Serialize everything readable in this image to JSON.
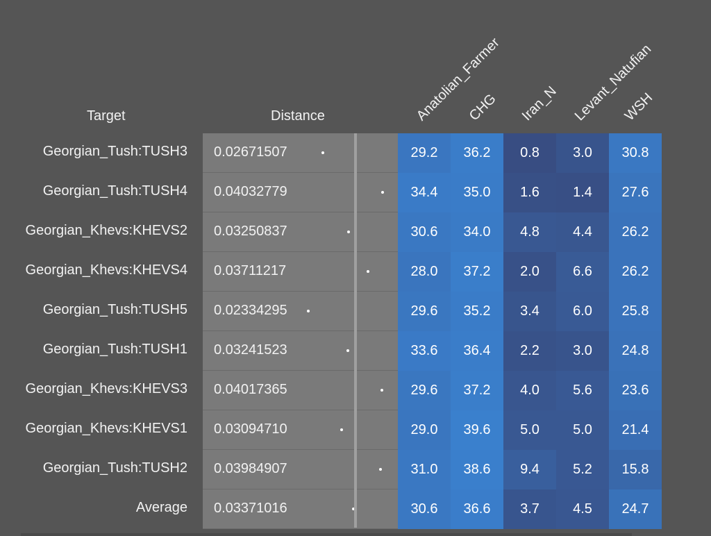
{
  "headers": {
    "target": "Target",
    "distance": "Distance",
    "columns": [
      "Anatolian_Farmer",
      "CHG",
      "Iran_N",
      "Levant_Natufian",
      "WSH"
    ]
  },
  "chart_data": {
    "type": "table",
    "columns": [
      "Target",
      "Distance",
      "Anatolian_Farmer",
      "CHG",
      "Iran_N",
      "Levant_Natufian",
      "WSH"
    ],
    "rows": [
      {
        "target": "Georgian_Tush:TUSH3",
        "distance": "0.02671507",
        "values": [
          "29.2",
          "36.2",
          "0.8",
          "3.0",
          "30.8"
        ]
      },
      {
        "target": "Georgian_Tush:TUSH4",
        "distance": "0.04032779",
        "values": [
          "34.4",
          "35.0",
          "1.6",
          "1.4",
          "27.6"
        ]
      },
      {
        "target": "Georgian_Khevs:KHEVS2",
        "distance": "0.03250837",
        "values": [
          "30.6",
          "34.0",
          "4.8",
          "4.4",
          "26.2"
        ]
      },
      {
        "target": "Georgian_Khevs:KHEVS4",
        "distance": "0.03711217",
        "values": [
          "28.0",
          "37.2",
          "2.0",
          "6.6",
          "26.2"
        ]
      },
      {
        "target": "Georgian_Tush:TUSH5",
        "distance": "0.02334295",
        "values": [
          "29.6",
          "35.2",
          "3.4",
          "6.0",
          "25.8"
        ]
      },
      {
        "target": "Georgian_Tush:TUSH1",
        "distance": "0.03241523",
        "values": [
          "33.6",
          "36.4",
          "2.2",
          "3.0",
          "24.8"
        ]
      },
      {
        "target": "Georgian_Khevs:KHEVS3",
        "distance": "0.04017365",
        "values": [
          "29.6",
          "37.2",
          "4.0",
          "5.6",
          "23.6"
        ]
      },
      {
        "target": "Georgian_Khevs:KHEVS1",
        "distance": "0.03094710",
        "values": [
          "29.0",
          "39.6",
          "5.0",
          "5.0",
          "21.4"
        ]
      },
      {
        "target": "Georgian_Tush:TUSH2",
        "distance": "0.03984907",
        "values": [
          "31.0",
          "38.6",
          "9.4",
          "5.2",
          "15.8"
        ]
      },
      {
        "target": "Average",
        "distance": "0.03371016",
        "values": [
          "30.6",
          "36.6",
          "3.7",
          "4.5",
          "24.7"
        ]
      }
    ]
  }
}
